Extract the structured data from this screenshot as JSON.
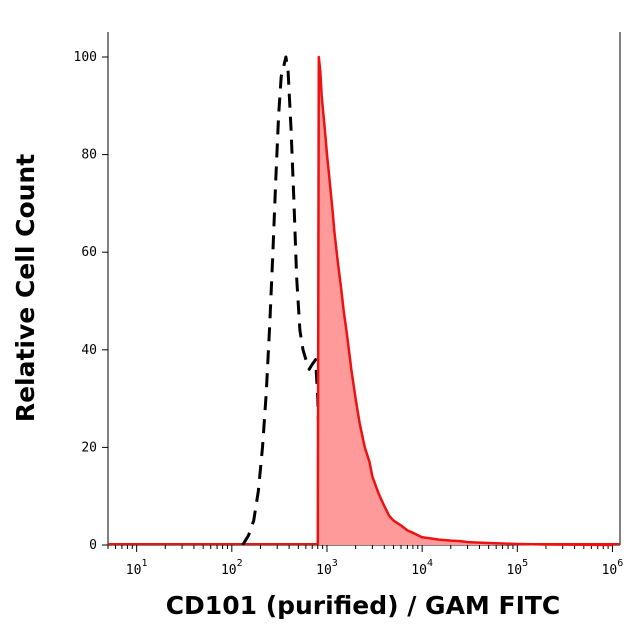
{
  "chart_data": {
    "type": "area",
    "title": "",
    "xlabel": "CD101 (purified) / GAM FITC",
    "ylabel": "Relative Cell Count",
    "x_scale": "log",
    "xlim": [
      5,
      1200000
    ],
    "ylim": [
      0,
      100
    ],
    "y_ticks": [
      0,
      20,
      40,
      60,
      80,
      100
    ],
    "y_tick_labels": [
      "0",
      "20",
      "40",
      "60",
      "80",
      "100"
    ],
    "x_ticks": [
      {
        "value": 10,
        "base": "10",
        "exp": "1"
      },
      {
        "value": 100,
        "base": "10",
        "exp": "2"
      },
      {
        "value": 1000,
        "base": "10",
        "exp": "3"
      },
      {
        "value": 10000,
        "base": "10",
        "exp": "4"
      },
      {
        "value": 100000,
        "base": "10",
        "exp": "5"
      },
      {
        "value": 1000000,
        "base": "10",
        "exp": "6"
      }
    ],
    "grid": false,
    "legend": "none",
    "series": [
      {
        "style": "dashed-outline",
        "color": "#000000",
        "x": [
          130,
          150,
          170,
          190,
          210,
          230,
          250,
          270,
          290,
          310,
          330,
          350,
          370,
          390,
          420,
          450,
          480,
          520,
          560,
          600,
          650,
          700,
          760,
          800,
          850,
          900,
          1000
        ],
        "y": [
          0,
          2,
          5,
          11,
          20,
          31,
          45,
          60,
          75,
          88,
          96,
          98,
          100,
          97,
          85,
          70,
          55,
          44,
          40,
          38,
          36,
          37,
          38,
          30,
          10,
          2,
          0
        ]
      },
      {
        "style": "filled",
        "color": "#ee1111",
        "fill": "#ff9a9a",
        "x": [
          800,
          820,
          850,
          880,
          900,
          950,
          1000,
          1050,
          1100,
          1150,
          1200,
          1300,
          1400,
          1500,
          1600,
          1700,
          1800,
          2000,
          2200,
          2500,
          2800,
          3000,
          3500,
          4000,
          4500,
          5000,
          6000,
          7000,
          8000,
          9000,
          10000,
          12000,
          15000,
          20000,
          25000,
          30000,
          40000,
          50000,
          70000,
          100000,
          200000,
          500000,
          1000000
        ],
        "y": [
          0,
          100,
          97,
          92,
          90,
          85,
          80,
          76,
          72,
          68,
          64,
          58,
          53,
          48,
          44,
          40,
          36,
          30,
          25,
          20,
          17,
          14,
          10.5,
          8,
          6,
          5,
          4,
          3,
          2.5,
          2,
          1.6,
          1.4,
          1.1,
          0.9,
          0.8,
          0.6,
          0.5,
          0.4,
          0.3,
          0.2,
          0.1,
          0.05,
          0
        ]
      }
    ]
  }
}
